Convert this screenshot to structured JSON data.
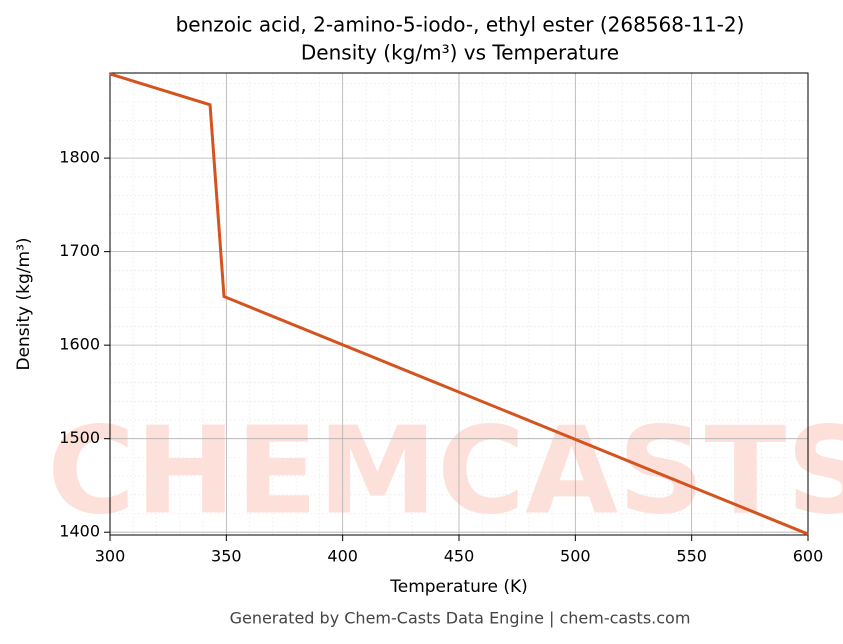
{
  "chart_data": {
    "type": "line",
    "title": "benzoic acid, 2-amino-5-iodo-, ethyl ester (268568-11-2)",
    "subtitle": "Density (kg/m³) vs Temperature",
    "x_label": "Temperature (K)",
    "y_label": "Density (kg/m³)",
    "footer": "Generated by Chem-Casts Data Engine | chem-casts.com",
    "watermark": "CHEMCASTS",
    "x": [
      300,
      343,
      349,
      600
    ],
    "series": [
      {
        "name": "Density",
        "color": "#d4541f",
        "values": [
          1890,
          1857,
          1652,
          1398
        ]
      }
    ],
    "xlim": [
      300,
      600
    ],
    "xticks": [
      300,
      350,
      400,
      450,
      500,
      550,
      600
    ],
    "ylim": [
      1397,
      1891
    ],
    "yticks": [
      1400,
      1500,
      1600,
      1700,
      1800
    ],
    "grid": true,
    "minor_grid": true
  }
}
